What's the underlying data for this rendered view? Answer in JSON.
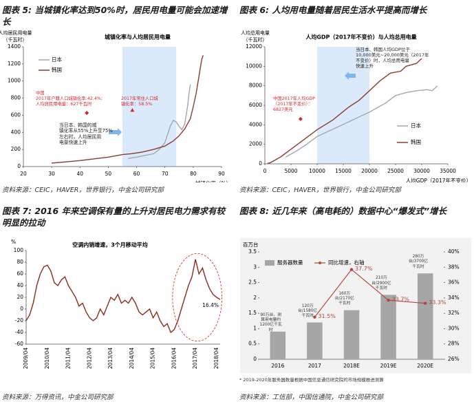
{
  "chart_data": [
    {
      "type": "line",
      "caption": "图表 5: 当城镇化率达到50%时，居民用电量可能会加速增长",
      "title": "城镇化率与人均居民用电量",
      "ylabel": [
        "人均居民用电量",
        "（千瓦时）"
      ],
      "xlabel": "城镇化率（%）",
      "source": "资料来源：CEIC，HAVER，世界银行，中金公司研究部",
      "xlim": [
        20,
        90
      ],
      "ylim": [
        0,
        1400
      ],
      "xticks": [
        20,
        30,
        40,
        50,
        60,
        70,
        80,
        90
      ],
      "yticks": [
        0,
        200,
        400,
        600,
        800,
        1000,
        1200,
        1400
      ],
      "shade_x": [
        55,
        74
      ],
      "series": [
        {
          "name": "日本",
          "color": "#a6a6a6",
          "x": [
            57,
            60,
            63,
            66,
            68,
            70,
            71,
            72,
            73,
            74,
            75,
            76,
            77,
            78,
            78.5,
            79
          ],
          "values": [
            95,
            110,
            130,
            150,
            200,
            280,
            380,
            480,
            540,
            520,
            470,
            430,
            500,
            700,
            850,
            960
          ]
        },
        {
          "name": "韩国",
          "color": "#8b3a2f",
          "x": [
            30,
            35,
            40,
            45,
            50,
            55,
            58,
            62,
            66,
            70,
            73,
            75,
            77,
            79,
            80,
            81,
            82,
            82.5,
            83,
            83.5
          ],
          "values": [
            40,
            55,
            70,
            90,
            110,
            140,
            150,
            170,
            200,
            240,
            300,
            360,
            440,
            560,
            700,
            850,
            1050,
            1150,
            1250,
            1300
          ]
        }
      ],
      "points": [
        {
          "x": 42.4,
          "y": 627,
          "shape": "diamond",
          "color": "#d62728"
        },
        {
          "x": 58.5,
          "y": 660,
          "shape": "triangle",
          "color": "#d62728"
        }
      ],
      "notes": [
        {
          "text": "中国\n2017年户籍人口城镇化率:42.4%;\n人均居民用电量：627千瓦时",
          "color": "#d62728"
        },
        {
          "text": "2017年常住人口城\n镇化率：58.5%",
          "color": "#d62728"
        },
        {
          "text": "当日本、韩国的城\n镇化率从55%上升至75%\n左右时，人均居民用\n电量快速上升",
          "color": "#222222"
        }
      ]
    },
    {
      "type": "line",
      "caption": "图表 6: 人均用电量随着居民生活水平提高而增长",
      "title": "人均GDP（2017年不变价）与人均总用电量",
      "ylabel": [
        "人均总用电量",
        "（千瓦时）"
      ],
      "xlabel": "人均GDP（2017年不变价）",
      "source": "资料来源：CEIC，HAVER，世界银行，中金公司研究部",
      "xlim": [
        0,
        35000
      ],
      "ylim": [
        0,
        12000
      ],
      "xticks": [
        0,
        5000,
        10000,
        15000,
        20000,
        25000,
        30000,
        35000
      ],
      "yticks": [
        0,
        2000,
        4000,
        6000,
        8000,
        10000,
        12000
      ],
      "shade_x": [
        10000,
        20000
      ],
      "series": [
        {
          "name": "日本",
          "color": "#a6a6a6",
          "x": [
            4000,
            6000,
            8000,
            10000,
            12000,
            14000,
            16000,
            18000,
            20000,
            22000,
            23000,
            25000,
            27000,
            29000,
            31000,
            32000,
            33000
          ],
          "values": [
            700,
            1300,
            2000,
            2800,
            3300,
            3800,
            4300,
            4800,
            5300,
            5900,
            6200,
            7000,
            7300,
            7500,
            7600,
            7500,
            8000
          ]
        },
        {
          "name": "韩国",
          "color": "#8b3a2f",
          "x": [
            500,
            1000,
            3000,
            5000,
            8000,
            10000,
            13000,
            16000,
            18000,
            20000,
            22000,
            24000,
            26000,
            27000,
            29000,
            30000
          ],
          "values": [
            50,
            100,
            700,
            1500,
            2700,
            3500,
            4500,
            5800,
            6500,
            7500,
            8500,
            9300,
            9500,
            10000,
            10300,
            10800
          ]
        }
      ],
      "points": [
        {
          "x": 6827,
          "y": 4600,
          "shape": "diamond",
          "color": "#d62728"
        }
      ],
      "notes": [
        {
          "text": "中国2017年人均GDP\n（2017年不变价）：\n6827美元",
          "color": "#d62728"
        },
        {
          "text": "当日本、韩国人均GDP位于\n10,000美元~20,000美元（2017年\n不变价）时，人均总用电量\n快速上升",
          "color": "#222222"
        }
      ]
    },
    {
      "type": "line",
      "caption": "图表 7: 2016 年来空调保有量的上升对居民电力需求有较明显的拉动",
      "title": "空调内销增速，3个月移动平均",
      "ylabel": "%",
      "source": "资料来源：万得资讯，中金公司研究部",
      "categories": [
        "2009/04",
        null,
        null,
        null,
        null,
        null,
        "2010/04",
        null,
        null,
        null,
        null,
        null,
        "2011/04",
        null,
        null,
        null,
        null,
        null,
        "2012/04",
        null,
        null,
        null,
        null,
        null,
        "2013/04",
        null,
        null,
        null,
        null,
        null,
        "2014/04",
        null,
        null,
        null,
        null,
        null,
        "2015/04",
        null,
        null,
        null,
        null,
        null,
        "2016/04",
        null,
        null,
        null,
        null,
        null,
        "2017/04",
        null,
        null,
        null,
        null,
        null,
        "2018/04",
        null
      ],
      "ylim": [
        -60,
        100
      ],
      "yticks": [
        -60,
        -40,
        -20,
        0,
        20,
        40,
        60,
        80,
        100
      ],
      "series": [
        {
          "color": "#8b2a1a",
          "values": [
            -20,
            -10,
            10,
            40,
            60,
            72,
            75,
            65,
            45,
            40,
            50,
            55,
            40,
            30,
            20,
            5,
            10,
            -5,
            -15,
            -20,
            -15,
            0,
            -10,
            5,
            20,
            15,
            25,
            10,
            15,
            10,
            20,
            10,
            -5,
            -10,
            -5,
            0,
            -15,
            -5,
            -20,
            -30,
            -25,
            -40,
            -35,
            -20,
            0,
            20,
            40,
            55,
            85,
            60,
            70,
            50,
            35,
            25,
            20,
            16.4
          ],
          "value_labels": [
            null,
            null,
            null,
            null,
            null,
            null,
            null,
            null,
            null,
            null,
            null,
            null,
            null,
            null,
            null,
            null,
            null,
            null,
            null,
            null,
            null,
            null,
            null,
            null,
            null,
            null,
            null,
            null,
            null,
            null,
            null,
            null,
            null,
            null,
            null,
            null,
            null,
            null,
            null,
            null,
            null,
            null,
            null,
            null,
            null,
            null,
            null,
            null,
            null,
            null,
            null,
            null,
            null,
            null,
            null,
            "16.4%"
          ]
        }
      ]
    },
    {
      "type": "bar",
      "caption": "图表 8: 近几年来（高电耗的）数据中心“爆发式”增长",
      "ylabel": "百万台",
      "categories": [
        "2016",
        "2017",
        "2018E",
        "2019E",
        "2020E"
      ],
      "series": [
        {
          "name": "服务器数量",
          "color": "#a6a6a6",
          "values": [
            0.9,
            1.2,
            1.6,
            2.1,
            2.8
          ],
          "value_labels": [
            "90万台，测算用电量约1200亿千瓦时",
            "120万台/1580亿千瓦时",
            "160万台/2170亿千瓦时",
            "210万台/2900亿千瓦时",
            "280万台/3700亿千瓦时"
          ]
        },
        {
          "name": "同比增速，右轴",
          "color": "#b5443a",
          "axis": "y2",
          "values": [
            null,
            31.5,
            37.7,
            33.7,
            33.3
          ],
          "value_labels": [
            null,
            "31.5%",
            "37.7%",
            "33.7%",
            "33.3%"
          ]
        }
      ],
      "ylim": [
        0,
        3.5
      ],
      "yticks": [
        0,
        0.5,
        1,
        1.5,
        2,
        2.5,
        3,
        3.5
      ],
      "y2lim": [
        26,
        40
      ],
      "y2ticks": [
        {
          "value": 26,
          "label": "26%"
        },
        {
          "value": 28,
          "label": "28%"
        },
        {
          "value": 30,
          "label": "30%"
        },
        {
          "value": 32,
          "label": "32%"
        },
        {
          "value": 34,
          "label": "34%"
        },
        {
          "value": 36,
          "label": "36%"
        },
        {
          "value": 38,
          "label": "38%"
        },
        {
          "value": 40,
          "label": "40%"
        }
      ],
      "footnote": "* 2019-2020年服务器数量根据中国信息通信研究院的市场规模推进测算",
      "source": "资料来源：工信部，中国信通院，中金公司研究部"
    }
  ]
}
